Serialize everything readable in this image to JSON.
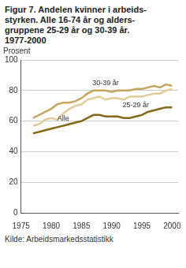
{
  "chart_data": {
    "type": "line",
    "title": [
      "Figur 7. Andelen kvinner i arbeids-",
      "styrken. Alle 16-74 år og alders-",
      "gruppene 25-29 år og 30-39 år.",
      "1977-2000"
    ],
    "y_label": "Prosent",
    "source": "Kilde: Arbeidsmarkedsstatistikk",
    "x": [
      1977,
      1978,
      1979,
      1980,
      1981,
      1982,
      1983,
      1984,
      1985,
      1986,
      1987,
      1988,
      1989,
      1990,
      1991,
      1992,
      1993,
      1994,
      1995,
      1996,
      1997,
      1998,
      1999,
      2000
    ],
    "series": [
      {
        "name": "30-39 år",
        "color": "#c8a55e",
        "values": [
          62,
          64,
          66,
          68,
          71,
          72,
          72,
          73,
          75,
          78,
          80,
          80,
          80,
          79,
          80,
          80,
          80,
          81,
          81,
          82,
          83,
          82,
          84,
          83
        ]
      },
      {
        "name": "25-29 år",
        "color": "#e2cc98",
        "values": [
          57,
          58,
          61,
          62,
          61,
          65,
          68,
          70,
          71,
          74,
          75,
          76,
          74,
          75,
          75,
          74,
          76,
          76,
          76,
          77,
          78,
          78,
          80,
          81
        ]
      },
      {
        "name": "Alle",
        "color": "#876519",
        "values": [
          52,
          53,
          54,
          55,
          56,
          57,
          58,
          59,
          60,
          62,
          64,
          64,
          63,
          63,
          63,
          62,
          62,
          63,
          64,
          66,
          67,
          68,
          69,
          69
        ]
      }
    ],
    "xlim": [
      1975,
      2001
    ],
    "xticks": [
      1975,
      1980,
      1985,
      1990,
      1995,
      2000
    ],
    "ylim": [
      0,
      100
    ],
    "yticks": [
      0,
      20,
      40,
      60,
      80,
      100
    ],
    "grid": true
  }
}
